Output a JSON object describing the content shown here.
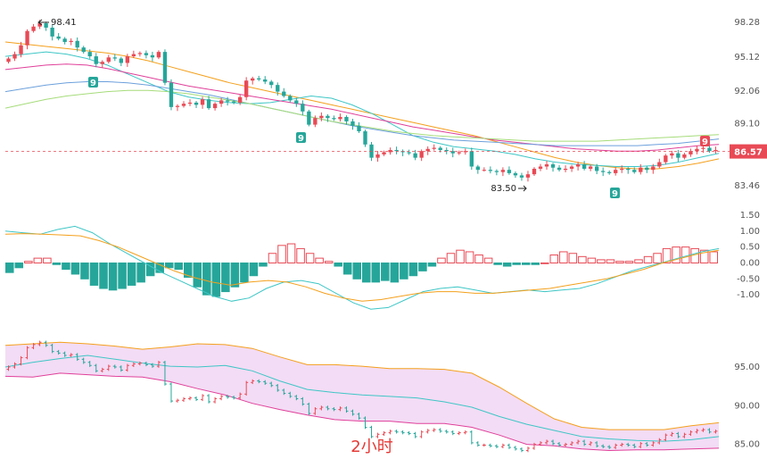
{
  "chart_data": [
    {
      "type": "candlestick",
      "name": "price",
      "ylim": [
        82.0,
        99.5
      ],
      "y_ticks": [
        98.28,
        95.12,
        92.06,
        89.1,
        86.57,
        83.46
      ],
      "last_price": "86.57",
      "high_label": "98.41",
      "low_label": "83.50",
      "seq_labels": [
        "9",
        "9",
        "9",
        "9"
      ],
      "colors": {
        "up": "#e84a55",
        "down": "#26a69a",
        "last_badge": "#e84a55"
      },
      "closes": [
        95.0,
        95.4,
        96.2,
        97.5,
        97.9,
        98.2,
        97.8,
        97.0,
        96.8,
        96.5,
        96.6,
        96.0,
        95.6,
        95.2,
        94.5,
        94.7,
        95.1,
        95.0,
        94.6,
        95.2,
        95.4,
        95.5,
        95.3,
        95.1,
        95.6,
        92.8,
        90.6,
        90.7,
        90.9,
        91.0,
        90.8,
        91.3,
        90.5,
        90.9,
        91.2,
        91.1,
        91.0,
        91.5,
        93.0,
        93.2,
        93.1,
        92.9,
        92.6,
        92.0,
        91.6,
        91.2,
        90.9,
        90.2,
        89.0,
        89.6,
        89.8,
        89.6,
        89.5,
        89.7,
        89.3,
        88.9,
        88.4,
        87.2,
        86.0,
        86.3,
        86.5,
        86.7,
        86.6,
        86.5,
        86.4,
        86.0,
        86.6,
        86.8,
        86.9,
        86.7,
        86.6,
        86.4,
        86.5,
        86.6,
        85.2,
        84.9,
        84.9,
        84.8,
        84.7,
        84.9,
        84.6,
        84.4,
        84.2,
        84.5,
        85.0,
        85.2,
        85.4,
        85.1,
        84.9,
        85.0,
        85.2,
        85.4,
        85.0,
        85.2,
        84.8,
        84.7,
        84.6,
        84.9,
        85.0,
        84.9,
        84.7,
        85.1,
        84.9,
        85.2,
        85.6,
        86.2,
        86.4,
        86.0,
        86.3,
        86.6,
        86.8,
        86.9,
        86.6,
        86.7
      ],
      "ma_lines": [
        {
          "color": "#f4a01c",
          "values": [
            96.5,
            96.3,
            96.1,
            95.9,
            95.7,
            95.5,
            95.2,
            94.8,
            94.3,
            93.8,
            93.3,
            92.8,
            92.4,
            92.0,
            91.6,
            91.2,
            90.8,
            90.4,
            90.0,
            89.6,
            89.2,
            88.8,
            88.4,
            88.0,
            87.5,
            87.0,
            86.5,
            86.0,
            85.6,
            85.3,
            85.1,
            85.0,
            85.0,
            85.2,
            85.5,
            85.9
          ]
        },
        {
          "color": "#3ec6c6",
          "values": [
            95.2,
            95.4,
            95.6,
            95.4,
            95.0,
            94.4,
            93.6,
            92.8,
            92.0,
            91.5,
            91.2,
            91.0,
            90.9,
            91.0,
            91.3,
            91.6,
            91.4,
            90.8,
            90.0,
            89.0,
            88.0,
            87.4,
            87.0,
            86.8,
            86.6,
            86.3,
            85.9,
            85.6,
            85.4,
            85.3,
            85.2,
            85.2,
            85.3,
            85.6,
            86.0,
            86.4
          ]
        },
        {
          "color": "#e0409a",
          "values": [
            94.0,
            94.2,
            94.4,
            94.5,
            94.4,
            94.1,
            93.7,
            93.3,
            92.9,
            92.5,
            92.2,
            91.9,
            91.6,
            91.3,
            91.0,
            90.7,
            90.4,
            90.0,
            89.6,
            89.2,
            88.8,
            88.5,
            88.2,
            87.9,
            87.6,
            87.4,
            87.2,
            87.0,
            86.8,
            86.7,
            86.6,
            86.6,
            86.7,
            86.9,
            87.1,
            87.2
          ]
        },
        {
          "color": "#6ca0dc",
          "values": [
            92.0,
            92.3,
            92.6,
            92.8,
            92.9,
            92.9,
            92.8,
            92.6,
            92.3,
            92.0,
            91.7,
            91.3,
            90.9,
            90.5,
            90.1,
            89.7,
            89.3,
            88.9,
            88.6,
            88.3,
            88.0,
            87.8,
            87.6,
            87.5,
            87.4,
            87.3,
            87.2,
            87.1,
            87.1,
            87.1,
            87.1,
            87.1,
            87.2,
            87.3,
            87.5,
            87.7
          ]
        },
        {
          "color": "#a6dc7a",
          "values": [
            90.5,
            90.9,
            91.3,
            91.6,
            91.8,
            92.0,
            92.1,
            92.1,
            92.0,
            91.8,
            91.5,
            91.2,
            90.9,
            90.5,
            90.1,
            89.7,
            89.3,
            89.0,
            88.7,
            88.4,
            88.2,
            88.0,
            87.9,
            87.8,
            87.7,
            87.6,
            87.5,
            87.5,
            87.5,
            87.5,
            87.6,
            87.7,
            87.8,
            87.9,
            88.0,
            88.1
          ]
        }
      ]
    },
    {
      "type": "histogram+lines",
      "name": "macd",
      "ylim": [
        -1.5,
        1.75
      ],
      "y_ticks": [
        "1.50",
        "1.00",
        "0.50",
        "0.00",
        "-0.50",
        "-1.00"
      ],
      "hist": [
        -0.3,
        -0.15,
        0.05,
        0.15,
        0.15,
        -0.05,
        -0.2,
        -0.35,
        -0.5,
        -0.7,
        -0.8,
        -0.85,
        -0.8,
        -0.7,
        -0.6,
        -0.4,
        -0.3,
        -0.15,
        -0.2,
        -0.45,
        -0.75,
        -1.0,
        -1.05,
        -0.9,
        -0.75,
        -0.6,
        -0.4,
        -0.1,
        0.3,
        0.55,
        0.6,
        0.45,
        0.3,
        0.15,
        0.05,
        -0.1,
        -0.35,
        -0.5,
        -0.6,
        -0.6,
        -0.55,
        -0.6,
        -0.5,
        -0.4,
        -0.25,
        -0.1,
        0.15,
        0.3,
        0.4,
        0.35,
        0.25,
        0.15,
        -0.05,
        -0.1,
        -0.05,
        -0.05,
        -0.05,
        0.0,
        0.25,
        0.35,
        0.3,
        0.2,
        0.15,
        0.1,
        0.1,
        0.05,
        0.05,
        0.1,
        0.2,
        0.3,
        0.45,
        0.5,
        0.5,
        0.45,
        0.4,
        0.35
      ],
      "dif": [
        1.0,
        0.95,
        0.9,
        1.05,
        1.15,
        0.95,
        0.6,
        0.3,
        0.0,
        -0.3,
        -0.55,
        -0.8,
        -1.05,
        -1.2,
        -1.1,
        -0.8,
        -0.6,
        -0.55,
        -0.65,
        -0.95,
        -1.25,
        -1.45,
        -1.4,
        -1.15,
        -0.9,
        -0.8,
        -0.75,
        -0.85,
        -0.95,
        -0.9,
        -0.85,
        -0.9,
        -0.85,
        -0.8,
        -0.65,
        -0.45,
        -0.25,
        -0.1,
        0.05,
        0.2,
        0.35,
        0.45
      ],
      "dea": [
        0.9,
        0.92,
        0.9,
        0.88,
        0.85,
        0.7,
        0.5,
        0.25,
        0.0,
        -0.25,
        -0.45,
        -0.6,
        -0.7,
        -0.6,
        -0.55,
        -0.6,
        -0.75,
        -0.95,
        -1.1,
        -1.2,
        -1.15,
        -1.05,
        -0.95,
        -0.9,
        -0.9,
        -0.95,
        -0.95,
        -0.9,
        -0.85,
        -0.8,
        -0.7,
        -0.6,
        -0.5,
        -0.35,
        -0.2,
        0.0,
        0.15,
        0.3,
        0.4
      ],
      "colors": {
        "pos": "#e84a55",
        "neg": "#26a69a",
        "dif": "#3ec6c6",
        "dea": "#f4a01c"
      }
    },
    {
      "type": "band",
      "name": "bollinger",
      "ylim": [
        83.8,
        99.5
      ],
      "y_ticks": [
        "95.00",
        "90.00",
        "85.00"
      ],
      "upper": [
        97.8,
        98.0,
        98.2,
        98.0,
        97.7,
        97.3,
        97.6,
        98.0,
        97.9,
        97.4,
        96.3,
        95.3,
        95.3,
        95.1,
        94.8,
        94.8,
        94.7,
        94.2,
        92.4,
        90.3,
        88.3,
        87.2,
        86.9,
        86.9,
        86.9,
        87.4,
        87.8
      ],
      "middle": [
        95.0,
        95.6,
        96.1,
        96.5,
        96.0,
        95.5,
        95.1,
        95.0,
        95.2,
        94.5,
        93.2,
        92.1,
        91.7,
        91.4,
        91.2,
        91.0,
        90.5,
        89.8,
        88.6,
        87.6,
        86.8,
        86.0,
        85.7,
        85.5,
        85.4,
        85.6,
        86.0
      ],
      "lower": [
        93.8,
        93.7,
        94.2,
        94.0,
        93.8,
        93.7,
        93.1,
        92.2,
        91.4,
        90.3,
        89.5,
        88.8,
        88.2,
        88.0,
        88.0,
        87.7,
        87.7,
        87.2,
        86.2,
        85.0,
        84.8,
        84.4,
        84.2,
        84.3,
        84.3,
        84.4,
        84.5
      ],
      "colors": {
        "upper": "#f4a01c",
        "middle": "#3ec6c6",
        "lower": "#e0409a",
        "fill": "#f3dcf5"
      }
    }
  ],
  "period_label": "2小时"
}
